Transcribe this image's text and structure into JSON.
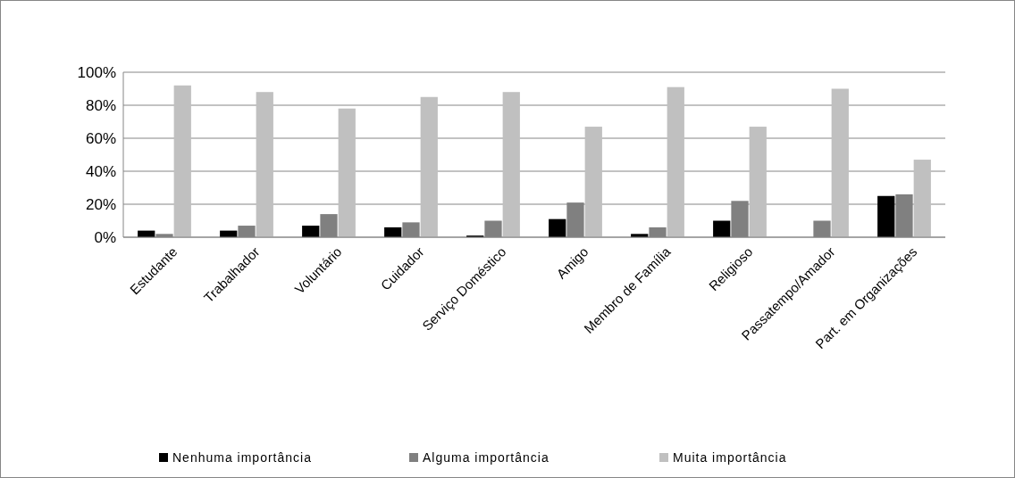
{
  "chart_data": {
    "type": "bar",
    "categories": [
      "Estudante",
      "Trabalhador",
      "Voluntário",
      "Cuidador",
      "Serviço Doméstico",
      "Amigo",
      "Membro de Família",
      "Religioso",
      "Passatempo/Amador",
      "Part. em Organizações"
    ],
    "series": [
      {
        "name": "Nenhuma importância",
        "color": "#000000",
        "values": [
          4,
          4,
          7,
          6,
          1,
          11,
          2,
          10,
          0,
          25
        ]
      },
      {
        "name": "Alguma importância",
        "color": "#808080",
        "values": [
          2,
          7,
          14,
          9,
          10,
          21,
          6,
          22,
          10,
          26
        ]
      },
      {
        "name": "Muita importância",
        "color": "#c0c0c0",
        "values": [
          92,
          88,
          78,
          85,
          88,
          67,
          91,
          67,
          90,
          47
        ]
      }
    ],
    "ylim": [
      0,
      100
    ],
    "yticks": [
      {
        "value": 0,
        "label": "0%"
      },
      {
        "value": 20,
        "label": "20%"
      },
      {
        "value": 40,
        "label": "40%"
      },
      {
        "value": 60,
        "label": "60%"
      },
      {
        "value": 80,
        "label": "80%"
      },
      {
        "value": 100,
        "label": "100%"
      }
    ],
    "grid": "y",
    "legend": "bottom"
  }
}
